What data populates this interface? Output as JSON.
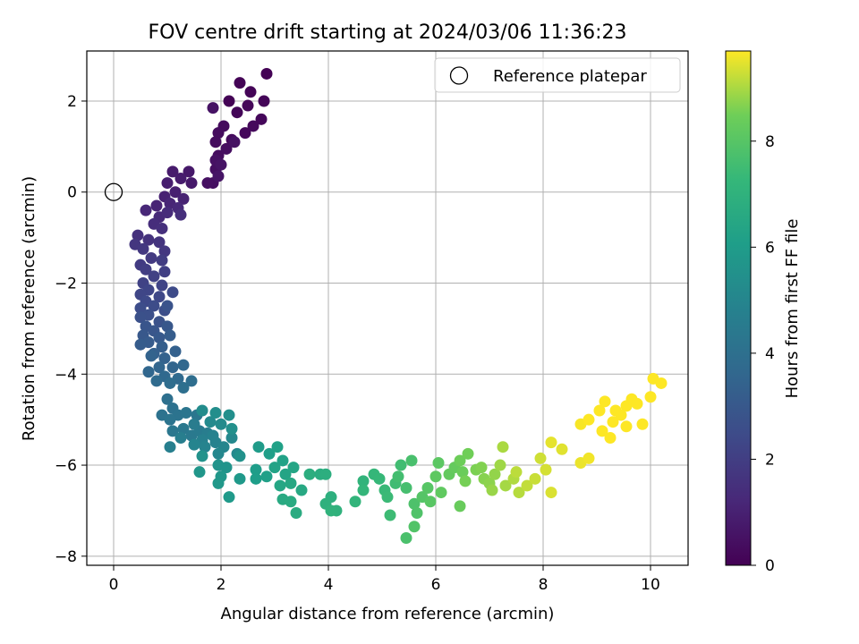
{
  "chart_data": {
    "type": "scatter",
    "title": "FOV centre drift starting at 2024/03/06 11:36:23",
    "xlabel": "Angular distance from reference (arcmin)",
    "ylabel": "Rotation from reference (arcmin)",
    "xlim": [
      -0.5,
      10.7
    ],
    "ylim": [
      -8.2,
      3.1
    ],
    "xticks": [
      0,
      2,
      4,
      6,
      8,
      10
    ],
    "yticks": [
      -8,
      -6,
      -4,
      -2,
      0,
      2
    ],
    "xtick_labels": [
      "0",
      "2",
      "4",
      "6",
      "8",
      "10"
    ],
    "ytick_labels": [
      "−8",
      "−6",
      "−4",
      "−2",
      "0",
      "2"
    ],
    "grid": true,
    "legend": {
      "position": "top-right",
      "entries": [
        "Reference platepar"
      ]
    },
    "reference_point": {
      "x": 0,
      "y": 0,
      "label": "Reference platepar"
    },
    "colorbar": {
      "label": "Hours from first FF file",
      "colormap": "viridis",
      "range": [
        0,
        9.7
      ],
      "ticks": [
        0,
        2,
        4,
        6,
        8
      ],
      "tick_labels": [
        "0",
        "2",
        "4",
        "6",
        "8"
      ]
    },
    "series": [
      {
        "color_by": "hours",
        "points": [
          [
            2.85,
            2.6,
            0.02
          ],
          [
            2.15,
            2.0,
            0.05
          ],
          [
            2.35,
            2.4,
            0.08
          ],
          [
            2.55,
            2.2,
            0.1
          ],
          [
            2.8,
            2.0,
            0.12
          ],
          [
            2.3,
            1.75,
            0.15
          ],
          [
            2.5,
            1.9,
            0.18
          ],
          [
            2.75,
            1.6,
            0.2
          ],
          [
            2.45,
            1.3,
            0.22
          ],
          [
            2.6,
            1.45,
            0.25
          ],
          [
            2.2,
            1.15,
            0.28
          ],
          [
            2.05,
            1.45,
            0.3
          ],
          [
            1.95,
            1.3,
            0.33
          ],
          [
            1.9,
            1.1,
            0.35
          ],
          [
            1.95,
            0.8,
            0.38
          ],
          [
            2.1,
            0.95,
            0.4
          ],
          [
            1.9,
            0.5,
            0.43
          ],
          [
            1.85,
            0.2,
            0.45
          ],
          [
            1.75,
            0.2,
            0.48
          ],
          [
            1.9,
            0.7,
            0.5
          ],
          [
            2.25,
            1.1,
            0.52
          ],
          [
            1.85,
            1.85,
            0.55
          ],
          [
            2.0,
            0.6,
            0.58
          ],
          [
            1.95,
            0.35,
            0.6
          ],
          [
            1.4,
            0.45,
            0.7
          ],
          [
            1.45,
            0.2,
            0.75
          ],
          [
            1.1,
            0.45,
            0.8
          ],
          [
            1.25,
            0.3,
            0.85
          ],
          [
            1.0,
            0.2,
            0.9
          ],
          [
            1.15,
            0.0,
            0.95
          ],
          [
            0.95,
            -0.1,
            1.0
          ],
          [
            1.3,
            -0.15,
            1.05
          ],
          [
            0.8,
            -0.3,
            1.1
          ],
          [
            1.05,
            -0.25,
            1.15
          ],
          [
            0.6,
            -0.4,
            1.2
          ],
          [
            1.2,
            -0.35,
            1.25
          ],
          [
            0.85,
            -0.55,
            1.3
          ],
          [
            1.0,
            -0.45,
            1.35
          ],
          [
            0.75,
            -0.7,
            1.4
          ],
          [
            1.25,
            -0.5,
            1.45
          ],
          [
            0.9,
            -0.8,
            1.5
          ],
          [
            0.45,
            -0.95,
            1.55
          ],
          [
            0.65,
            -1.05,
            1.6
          ],
          [
            0.85,
            -1.1,
            1.65
          ],
          [
            0.4,
            -1.15,
            1.7
          ],
          [
            0.95,
            -1.3,
            1.75
          ],
          [
            0.55,
            -1.25,
            1.8
          ],
          [
            0.7,
            -1.45,
            1.85
          ],
          [
            0.5,
            -1.6,
            1.9
          ],
          [
            0.9,
            -1.5,
            1.95
          ],
          [
            0.6,
            -1.7,
            2.0
          ],
          [
            0.95,
            -1.75,
            2.05
          ],
          [
            0.75,
            -1.85,
            2.1
          ],
          [
            0.55,
            -2.0,
            2.15
          ],
          [
            0.9,
            -2.05,
            2.2
          ],
          [
            0.65,
            -2.15,
            2.25
          ],
          [
            0.5,
            -2.25,
            2.3
          ],
          [
            0.85,
            -2.3,
            2.35
          ],
          [
            0.6,
            -2.4,
            2.4
          ],
          [
            1.1,
            -2.2,
            2.45
          ],
          [
            0.75,
            -2.5,
            2.5
          ],
          [
            0.5,
            -2.55,
            2.55
          ],
          [
            0.95,
            -2.6,
            2.6
          ],
          [
            0.65,
            -2.7,
            2.65
          ],
          [
            0.5,
            -2.75,
            2.7
          ],
          [
            0.85,
            -2.85,
            2.75
          ],
          [
            1.0,
            -2.5,
            2.8
          ],
          [
            0.6,
            -2.95,
            2.85
          ],
          [
            0.75,
            -3.05,
            2.9
          ],
          [
            1.0,
            -2.95,
            2.95
          ],
          [
            0.55,
            -3.15,
            3.0
          ],
          [
            0.85,
            -3.2,
            3.05
          ],
          [
            0.65,
            -3.3,
            3.1
          ],
          [
            0.5,
            -3.35,
            3.15
          ],
          [
            1.05,
            -3.15,
            3.2
          ],
          [
            0.9,
            -3.4,
            3.25
          ],
          [
            0.75,
            -3.55,
            3.3
          ],
          [
            1.15,
            -3.5,
            3.35
          ],
          [
            0.95,
            -3.65,
            3.4
          ],
          [
            0.7,
            -3.6,
            3.45
          ],
          [
            1.1,
            -3.85,
            3.5
          ],
          [
            0.85,
            -3.85,
            3.55
          ],
          [
            0.65,
            -3.95,
            3.6
          ],
          [
            1.3,
            -3.8,
            3.65
          ],
          [
            0.95,
            -4.05,
            3.7
          ],
          [
            1.2,
            -4.1,
            3.75
          ],
          [
            0.8,
            -4.15,
            3.8
          ],
          [
            1.05,
            -4.2,
            3.85
          ],
          [
            1.45,
            -4.15,
            3.9
          ],
          [
            1.3,
            -4.3,
            3.95
          ],
          [
            1.0,
            -4.55,
            4.0
          ],
          [
            1.1,
            -4.75,
            4.05
          ],
          [
            0.9,
            -4.9,
            4.1
          ],
          [
            1.2,
            -4.9,
            4.15
          ],
          [
            1.05,
            -5.0,
            4.2
          ],
          [
            1.35,
            -4.85,
            4.25
          ],
          [
            1.55,
            -4.9,
            4.3
          ],
          [
            1.1,
            -5.25,
            4.35
          ],
          [
            1.3,
            -5.2,
            4.4
          ],
          [
            1.45,
            -5.35,
            4.45
          ],
          [
            1.6,
            -5.25,
            4.5
          ],
          [
            1.5,
            -5.1,
            4.55
          ],
          [
            1.75,
            -5.3,
            4.6
          ],
          [
            1.25,
            -5.4,
            4.65
          ],
          [
            1.05,
            -5.6,
            4.7
          ],
          [
            1.65,
            -5.45,
            4.75
          ],
          [
            1.85,
            -5.35,
            4.8
          ],
          [
            1.9,
            -5.5,
            4.85
          ],
          [
            1.7,
            -5.6,
            4.9
          ],
          [
            1.5,
            -5.55,
            4.95
          ],
          [
            2.05,
            -5.6,
            5.0
          ],
          [
            1.95,
            -5.75,
            5.05
          ],
          [
            2.2,
            -5.4,
            5.1
          ],
          [
            2.3,
            -5.75,
            5.15
          ],
          [
            1.8,
            -5.05,
            5.2
          ],
          [
            2.0,
            -5.1,
            5.25
          ],
          [
            1.65,
            -4.8,
            5.3
          ],
          [
            1.9,
            -4.85,
            5.35
          ],
          [
            2.15,
            -4.9,
            5.4
          ],
          [
            2.2,
            -5.2,
            5.45
          ],
          [
            2.35,
            -5.8,
            5.5
          ],
          [
            1.65,
            -5.8,
            5.55
          ],
          [
            1.95,
            -6.0,
            5.6
          ],
          [
            2.1,
            -6.05,
            5.65
          ],
          [
            1.6,
            -6.15,
            5.7
          ],
          [
            2.0,
            -6.25,
            5.75
          ],
          [
            1.95,
            -6.4,
            5.8
          ],
          [
            2.35,
            -6.3,
            5.85
          ],
          [
            2.15,
            -6.7,
            5.9
          ],
          [
            2.7,
            -5.6,
            5.95
          ],
          [
            2.65,
            -6.1,
            6.0
          ],
          [
            2.65,
            -6.3,
            6.05
          ],
          [
            2.9,
            -5.75,
            6.1
          ],
          [
            2.85,
            -6.25,
            6.15
          ],
          [
            3.05,
            -5.6,
            6.2
          ],
          [
            3.15,
            -5.9,
            6.25
          ],
          [
            3.0,
            -6.05,
            6.3
          ],
          [
            3.2,
            -6.2,
            6.35
          ],
          [
            3.35,
            -6.05,
            6.4
          ],
          [
            3.1,
            -6.45,
            6.45
          ],
          [
            3.3,
            -6.4,
            6.5
          ],
          [
            3.5,
            -6.55,
            6.55
          ],
          [
            3.15,
            -6.75,
            6.6
          ],
          [
            3.3,
            -6.8,
            6.65
          ],
          [
            3.4,
            -7.05,
            6.7
          ],
          [
            3.85,
            -6.2,
            6.75
          ],
          [
            3.65,
            -6.2,
            6.8
          ],
          [
            3.95,
            -6.2,
            6.85
          ],
          [
            4.05,
            -6.7,
            6.9
          ],
          [
            3.95,
            -6.85,
            6.95
          ],
          [
            4.15,
            -7.0,
            7.0
          ],
          [
            4.05,
            -7.0,
            7.05
          ],
          [
            4.65,
            -6.35,
            7.1
          ],
          [
            4.5,
            -6.8,
            7.15
          ],
          [
            4.65,
            -6.55,
            7.2
          ],
          [
            4.85,
            -6.2,
            7.25
          ],
          [
            4.95,
            -6.3,
            7.3
          ],
          [
            5.05,
            -6.55,
            7.35
          ],
          [
            5.1,
            -6.7,
            7.4
          ],
          [
            5.15,
            -7.1,
            7.45
          ],
          [
            5.25,
            -6.4,
            7.5
          ],
          [
            5.35,
            -6.0,
            7.55
          ],
          [
            5.3,
            -6.25,
            7.6
          ],
          [
            5.45,
            -6.5,
            7.65
          ],
          [
            5.55,
            -5.9,
            7.7
          ],
          [
            5.45,
            -7.6,
            7.75
          ],
          [
            5.6,
            -6.85,
            7.8
          ],
          [
            5.65,
            -7.05,
            7.85
          ],
          [
            5.6,
            -7.35,
            7.9
          ],
          [
            5.75,
            -6.7,
            7.95
          ],
          [
            5.85,
            -6.5,
            8.0
          ],
          [
            5.9,
            -6.8,
            8.05
          ],
          [
            6.05,
            -5.95,
            8.1
          ],
          [
            6.0,
            -6.25,
            8.15
          ],
          [
            6.1,
            -6.6,
            8.2
          ],
          [
            6.25,
            -6.2,
            8.25
          ],
          [
            6.35,
            -6.05,
            8.3
          ],
          [
            6.45,
            -6.9,
            8.35
          ],
          [
            6.5,
            -6.15,
            8.4
          ],
          [
            6.45,
            -5.9,
            8.45
          ],
          [
            6.6,
            -5.75,
            8.5
          ],
          [
            6.55,
            -6.35,
            8.55
          ],
          [
            6.75,
            -6.1,
            8.6
          ],
          [
            6.85,
            -6.05,
            8.65
          ],
          [
            6.9,
            -6.3,
            8.7
          ],
          [
            7.0,
            -6.4,
            8.75
          ],
          [
            7.1,
            -6.2,
            8.8
          ],
          [
            7.05,
            -6.55,
            8.85
          ],
          [
            7.2,
            -6.0,
            8.9
          ],
          [
            7.3,
            -6.45,
            8.95
          ],
          [
            7.25,
            -5.6,
            9.0
          ],
          [
            7.45,
            -6.3,
            9.05
          ],
          [
            7.55,
            -6.6,
            9.1
          ],
          [
            7.5,
            -6.15,
            9.15
          ],
          [
            7.7,
            -6.45,
            9.2
          ],
          [
            7.85,
            -6.3,
            9.25
          ],
          [
            7.95,
            -5.85,
            9.3
          ],
          [
            8.05,
            -6.1,
            9.35
          ],
          [
            8.15,
            -6.6,
            9.4
          ],
          [
            8.35,
            -5.65,
            9.45
          ],
          [
            8.15,
            -5.5,
            9.5
          ],
          [
            8.7,
            -5.95,
            9.55
          ],
          [
            8.85,
            -5.85,
            9.6
          ],
          [
            8.7,
            -5.1,
            9.65
          ],
          [
            8.85,
            -5.0,
            9.7
          ],
          [
            9.05,
            -4.8,
            9.7
          ],
          [
            9.15,
            -4.6,
            9.7
          ],
          [
            9.3,
            -5.05,
            9.7
          ],
          [
            9.35,
            -4.8,
            9.7
          ],
          [
            9.25,
            -5.4,
            9.7
          ],
          [
            9.55,
            -4.7,
            9.7
          ],
          [
            9.65,
            -4.55,
            9.7
          ],
          [
            9.75,
            -4.65,
            9.7
          ],
          [
            9.85,
            -5.1,
            9.7
          ],
          [
            10.0,
            -4.5,
            9.7
          ],
          [
            10.05,
            -4.1,
            9.7
          ],
          [
            10.2,
            -4.2,
            9.7
          ],
          [
            9.45,
            -4.9,
            9.7
          ],
          [
            9.55,
            -5.15,
            9.7
          ],
          [
            9.1,
            -5.25,
            9.7
          ]
        ]
      }
    ]
  }
}
